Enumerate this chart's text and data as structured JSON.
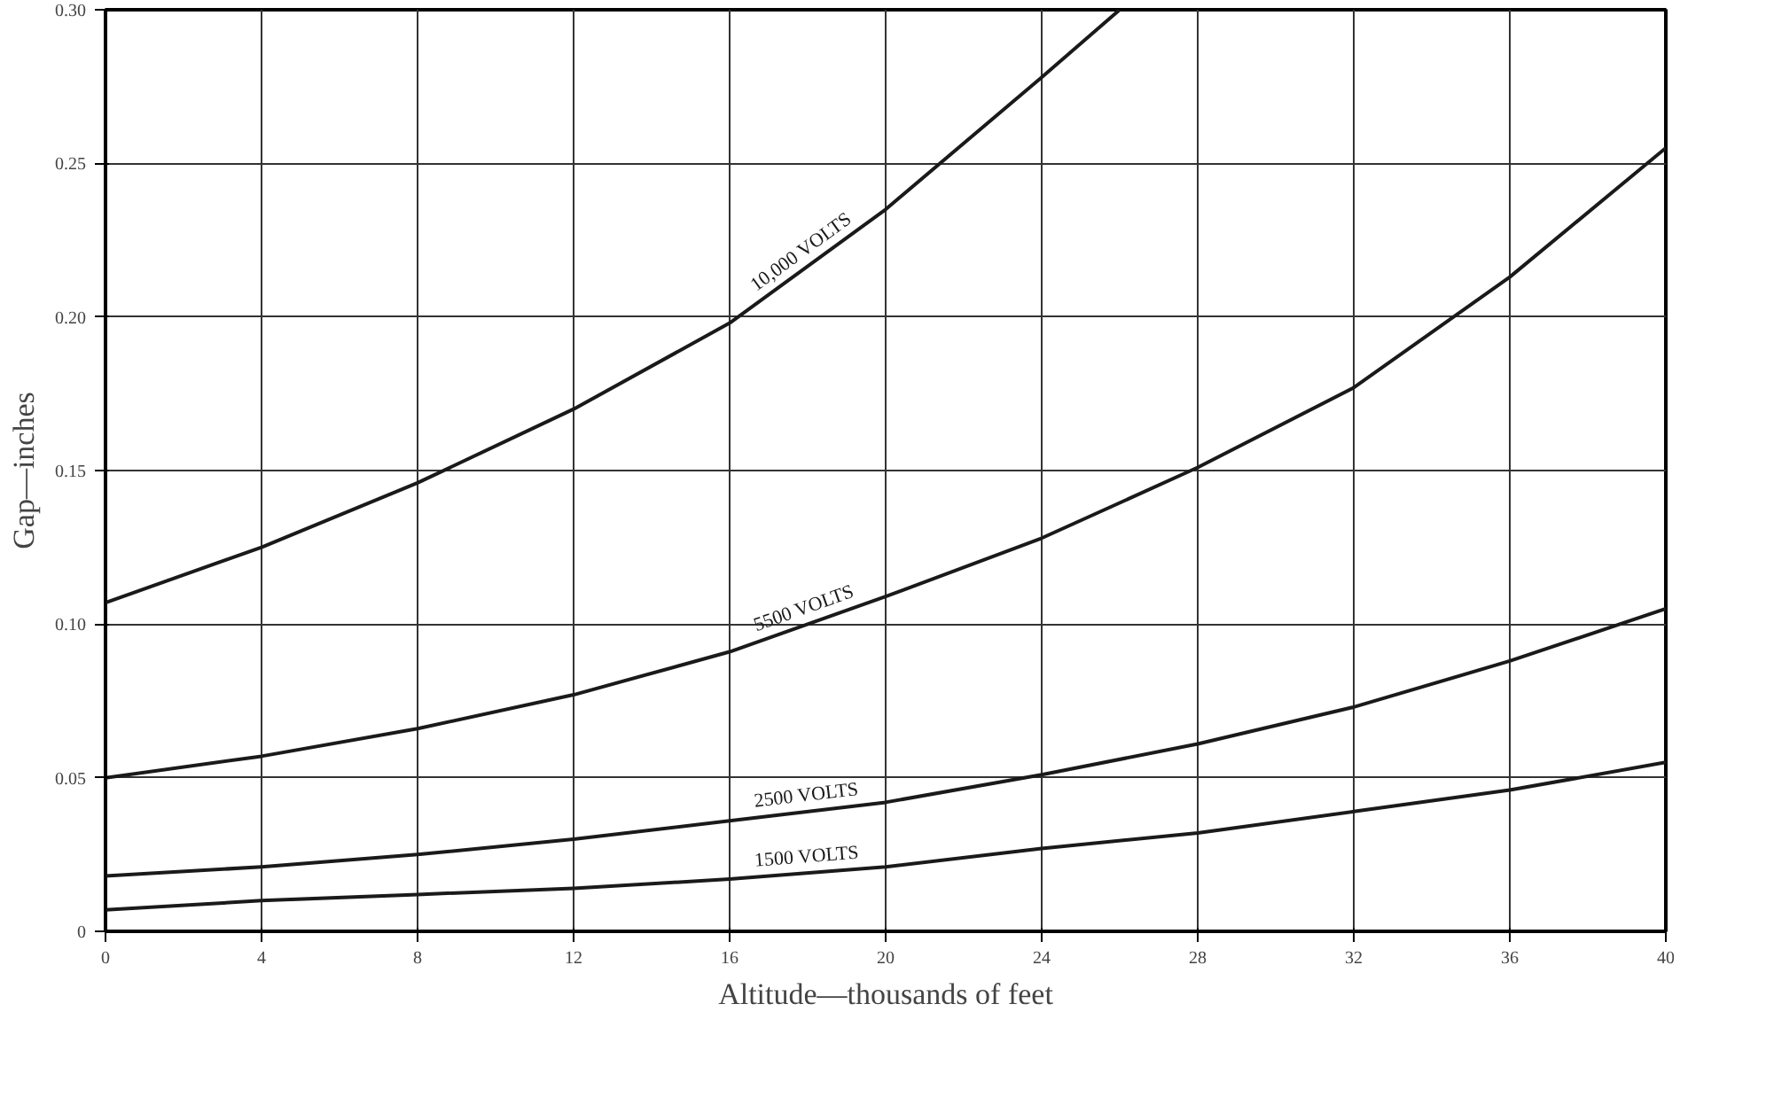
{
  "chart_data": {
    "type": "line",
    "xlabel": "Altitude—thousands of feet",
    "ylabel": "Gap—inches",
    "x": [
      0,
      4,
      8,
      12,
      16,
      20,
      24,
      28,
      32,
      36,
      40
    ],
    "series": [
      {
        "name": "10,000 VOLTS",
        "color": "#1a1a1a",
        "x": [
          0,
          4,
          8,
          12,
          16,
          20,
          24,
          26
        ],
        "values": [
          0.107,
          0.125,
          0.146,
          0.17,
          0.198,
          0.235,
          0.278,
          0.3
        ]
      },
      {
        "name": "5500 VOLTS",
        "color": "#1a1a1a",
        "values": [
          0.05,
          0.057,
          0.066,
          0.077,
          0.091,
          0.109,
          0.128,
          0.151,
          0.177,
          0.213,
          0.255
        ]
      },
      {
        "name": "2500 VOLTS",
        "color": "#1a1a1a",
        "values": [
          0.018,
          0.021,
          0.025,
          0.03,
          0.036,
          0.042,
          0.051,
          0.061,
          0.073,
          0.088,
          0.105
        ]
      },
      {
        "name": "1500 VOLTS",
        "color": "#1a1a1a",
        "values": [
          0.007,
          0.01,
          0.012,
          0.014,
          0.017,
          0.021,
          0.027,
          0.032,
          0.039,
          0.046,
          0.055
        ]
      }
    ],
    "xlim": [
      0,
      40
    ],
    "ylim": [
      0,
      0.3
    ],
    "xticks": [
      0,
      4,
      8,
      12,
      16,
      20,
      24,
      28,
      32,
      36,
      40
    ],
    "yticks": [
      0,
      {
        "value": 0.05,
        "label": "0.05"
      },
      {
        "value": 0.1,
        "label": "0.10"
      },
      {
        "value": 0.15,
        "label": "0.15"
      },
      {
        "value": 0.2,
        "label": "0.20"
      },
      {
        "value": 0.25,
        "label": "0.25"
      },
      {
        "value": 0.3,
        "label": "0.30"
      }
    ],
    "grid": true,
    "marker": "none",
    "line_style": "solid"
  }
}
